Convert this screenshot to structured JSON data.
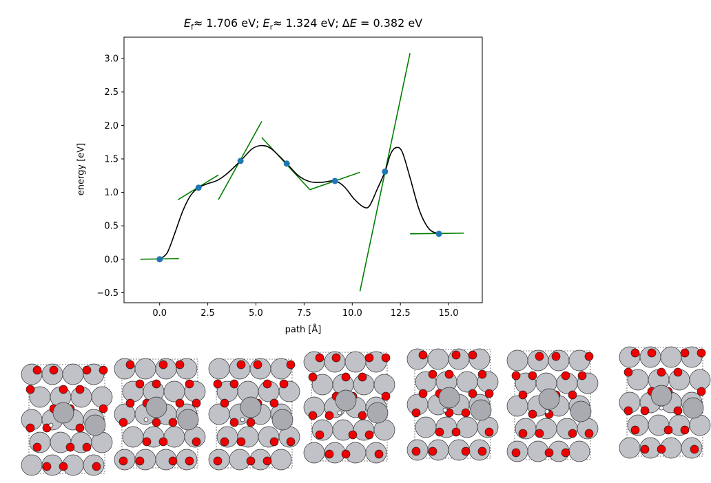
{
  "chart_data": {
    "type": "line",
    "title": {
      "ef_label": "E",
      "ef_sub": "f",
      "ef_text": "≈ 1.706 eV; ",
      "er_label": "E",
      "er_sub": "r",
      "er_text": "≈ 1.324 eV; Δ",
      "de_label": "E",
      "de_text": " = 0.382 eV"
    },
    "xlabel": "path [Å]",
    "ylabel": "energy [eV]",
    "xlim": [
      -1.85,
      16.75
    ],
    "ylim": [
      -0.65,
      3.32
    ],
    "xticks": [
      0.0,
      2.5,
      5.0,
      7.5,
      10.0,
      12.5,
      15.0
    ],
    "xtick_labels": [
      "0.0",
      "2.5",
      "5.0",
      "7.5",
      "10.0",
      "12.5",
      "15.0"
    ],
    "yticks": [
      -0.5,
      0.0,
      0.5,
      1.0,
      1.5,
      2.0,
      2.5,
      3.0
    ],
    "ytick_labels": [
      "−0.5",
      "0.0",
      "0.5",
      "1.0",
      "1.5",
      "2.0",
      "2.5",
      "3.0"
    ],
    "images": {
      "x": [
        0.0,
        2.02,
        4.2,
        6.6,
        9.1,
        11.7,
        14.5
      ],
      "y": [
        0.0,
        1.07,
        1.47,
        1.43,
        1.17,
        1.31,
        0.38
      ],
      "color": "#1f77b4"
    },
    "fit_curve": {
      "color": "#000000",
      "x": [
        0.0,
        0.4,
        0.8,
        1.2,
        1.6,
        2.02,
        2.5,
        3.0,
        3.5,
        4.2,
        4.8,
        5.3,
        5.8,
        6.6,
        7.2,
        7.8,
        8.4,
        9.1,
        9.6,
        10.1,
        10.6,
        10.9,
        11.3,
        11.7,
        12.0,
        12.3,
        12.6,
        13.0,
        13.5,
        14.0,
        14.5
      ],
      "y": [
        0.0,
        0.1,
        0.4,
        0.72,
        0.95,
        1.07,
        1.13,
        1.18,
        1.28,
        1.47,
        1.65,
        1.7,
        1.65,
        1.43,
        1.25,
        1.16,
        1.15,
        1.17,
        1.08,
        0.9,
        0.78,
        0.8,
        1.05,
        1.31,
        1.58,
        1.67,
        1.6,
        1.22,
        0.72,
        0.45,
        0.38
      ]
    },
    "tangents": {
      "color": "#008000",
      "segments": [
        [
          [
            -1.0,
            0.0
          ],
          [
            1.0,
            0.01
          ]
        ],
        [
          [
            0.95,
            0.89
          ],
          [
            3.05,
            1.26
          ]
        ],
        [
          [
            3.05,
            0.89
          ],
          [
            5.3,
            2.06
          ]
        ],
        [
          [
            5.3,
            1.82
          ],
          [
            7.8,
            1.04
          ]
        ],
        [
          [
            7.8,
            1.04
          ],
          [
            10.4,
            1.3
          ]
        ],
        [
          [
            10.4,
            -0.48
          ],
          [
            13.0,
            3.08
          ]
        ],
        [
          [
            13.0,
            0.38
          ],
          [
            15.8,
            0.39
          ]
        ]
      ]
    }
  },
  "snapshots": {
    "count": 7,
    "large_atom_color": "#c0c2c8",
    "small_atom_color": "#ee0000",
    "hydrogen_color": "#ffffff",
    "cell_outline_color": "#555555"
  }
}
